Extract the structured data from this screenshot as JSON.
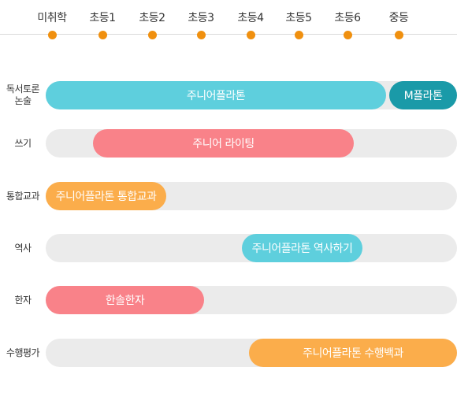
{
  "grades": [
    "미취학",
    "초등1",
    "초등2",
    "초등3",
    "초등4",
    "초등5",
    "초등6",
    "중등"
  ],
  "rows": [
    {
      "label": "독서토론\n논술",
      "programs": [
        {
          "name": "주니어플라톤",
          "color": "#5ecfdd"
        },
        {
          "name": "M플라톤",
          "color": "#1a9aa8"
        }
      ]
    },
    {
      "label": "쓰기",
      "programs": [
        {
          "name": "주니어 라이팅",
          "color": "#f98289"
        }
      ]
    },
    {
      "label": "통합교과",
      "programs": [
        {
          "name": "주니어플라톤 통합교과",
          "color": "#fbad4b"
        }
      ]
    },
    {
      "label": "역사",
      "programs": [
        {
          "name": "주니어플라톤 역사하기",
          "color": "#5ecfdd"
        }
      ]
    },
    {
      "label": "한자",
      "programs": [
        {
          "name": "한솔한자",
          "color": "#f98289"
        }
      ]
    },
    {
      "label": "수행평가",
      "programs": [
        {
          "name": "주니어플라톤 수행백과",
          "color": "#fbad4b"
        }
      ]
    }
  ]
}
